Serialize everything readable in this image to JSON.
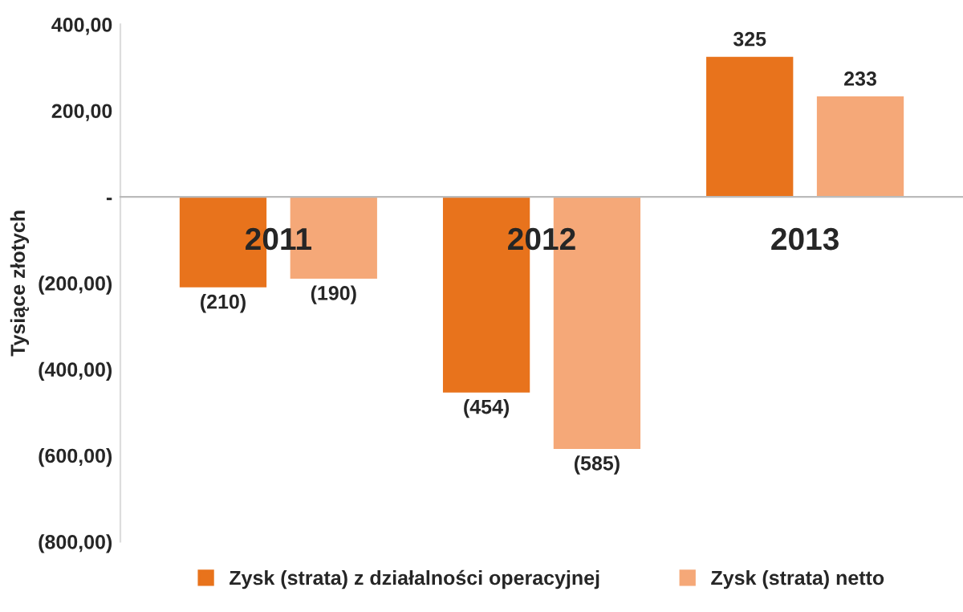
{
  "chart_data": {
    "type": "bar",
    "ylabel": "Tysiące złotych",
    "categories": [
      "2011",
      "2012",
      "2013"
    ],
    "series": [
      {
        "name": "Zysk (strata) z działalności operacyjnej",
        "color": "#e8731c",
        "values": [
          -210,
          -454,
          325
        ],
        "value_labels": [
          "(210)",
          "(454)",
          "325"
        ]
      },
      {
        "name": "Zysk (strata) netto",
        "color": "#f5a878",
        "values": [
          -190,
          -585,
          233
        ],
        "value_labels": [
          "(190)",
          "(585)",
          "233"
        ]
      }
    ],
    "ylim": [
      -800,
      400
    ],
    "yticks": [
      {
        "value": 400,
        "label": "400,00"
      },
      {
        "value": 200,
        "label": "200,00"
      },
      {
        "value": 0,
        "label": "-"
      },
      {
        "value": -200,
        "label": "(200,00)"
      },
      {
        "value": -400,
        "label": "(400,00)"
      },
      {
        "value": -600,
        "label": "(600,00)"
      },
      {
        "value": -800,
        "label": "(800,00)"
      }
    ],
    "grid": false,
    "legend": "bottom"
  }
}
